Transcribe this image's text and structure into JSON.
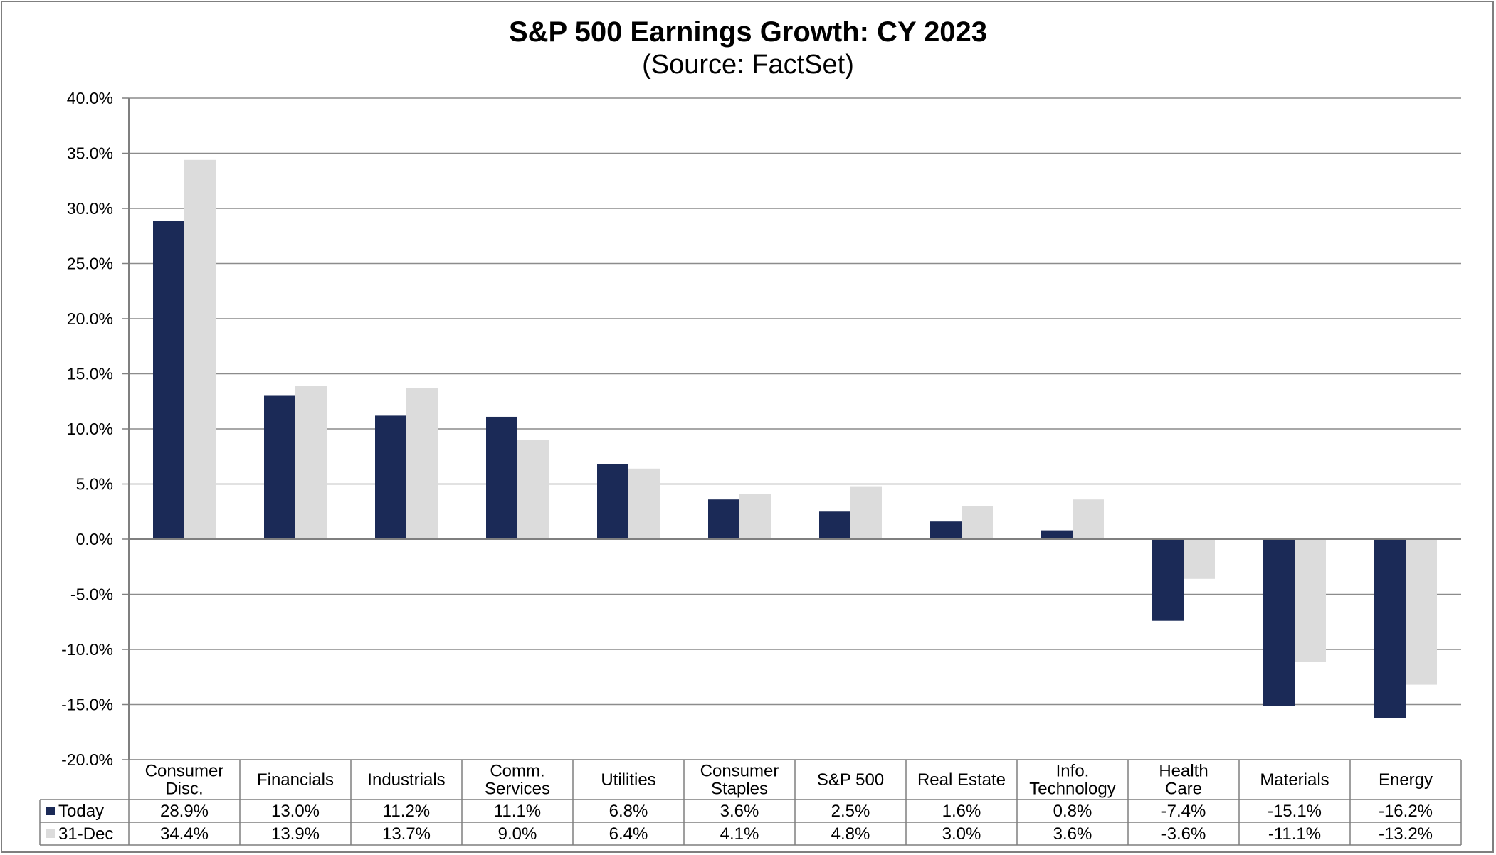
{
  "chart_data": {
    "type": "bar",
    "title": "S&P 500 Earnings Growth: CY 2023",
    "subtitle": "(Source: FactSet)",
    "categories": [
      [
        "Consumer",
        "Disc."
      ],
      [
        "Financials"
      ],
      [
        "Industrials"
      ],
      [
        "Comm.",
        "Services"
      ],
      [
        "Utilities"
      ],
      [
        "Consumer",
        "Staples"
      ],
      [
        "S&P 500"
      ],
      [
        "Real Estate"
      ],
      [
        "Info.",
        "Technology"
      ],
      [
        "Health",
        "Care"
      ],
      [
        "Materials"
      ],
      [
        "Energy"
      ]
    ],
    "series": [
      {
        "name": "Today",
        "color": "#1b2a57",
        "values": [
          28.9,
          13.0,
          11.2,
          11.1,
          6.8,
          3.6,
          2.5,
          1.6,
          0.8,
          -7.4,
          -15.1,
          -16.2
        ],
        "labels": [
          "28.9%",
          "13.0%",
          "11.2%",
          "11.1%",
          "6.8%",
          "3.6%",
          "2.5%",
          "1.6%",
          "0.8%",
          "-7.4%",
          "-15.1%",
          "-16.2%"
        ]
      },
      {
        "name": "31-Dec",
        "color": "#dcdcdc",
        "values": [
          34.4,
          13.9,
          13.7,
          9.0,
          6.4,
          4.1,
          4.8,
          3.0,
          3.6,
          -3.6,
          -11.1,
          -13.2
        ],
        "labels": [
          "34.4%",
          "13.9%",
          "13.7%",
          "9.0%",
          "6.4%",
          "4.1%",
          "4.8%",
          "3.0%",
          "3.6%",
          "-3.6%",
          "-11.1%",
          "-13.2%"
        ]
      }
    ],
    "ylim": [
      -20,
      40
    ],
    "yticks": [
      40,
      35,
      30,
      25,
      20,
      15,
      10,
      5,
      0,
      -5,
      -10,
      -15,
      -20
    ],
    "ytick_labels": [
      "40.0%",
      "35.0%",
      "30.0%",
      "25.0%",
      "20.0%",
      "15.0%",
      "10.0%",
      "5.0%",
      "0.0%",
      "-5.0%",
      "-10.0%",
      "-15.0%",
      "-20.0%"
    ],
    "grid": true,
    "legend": "data-table-below"
  }
}
